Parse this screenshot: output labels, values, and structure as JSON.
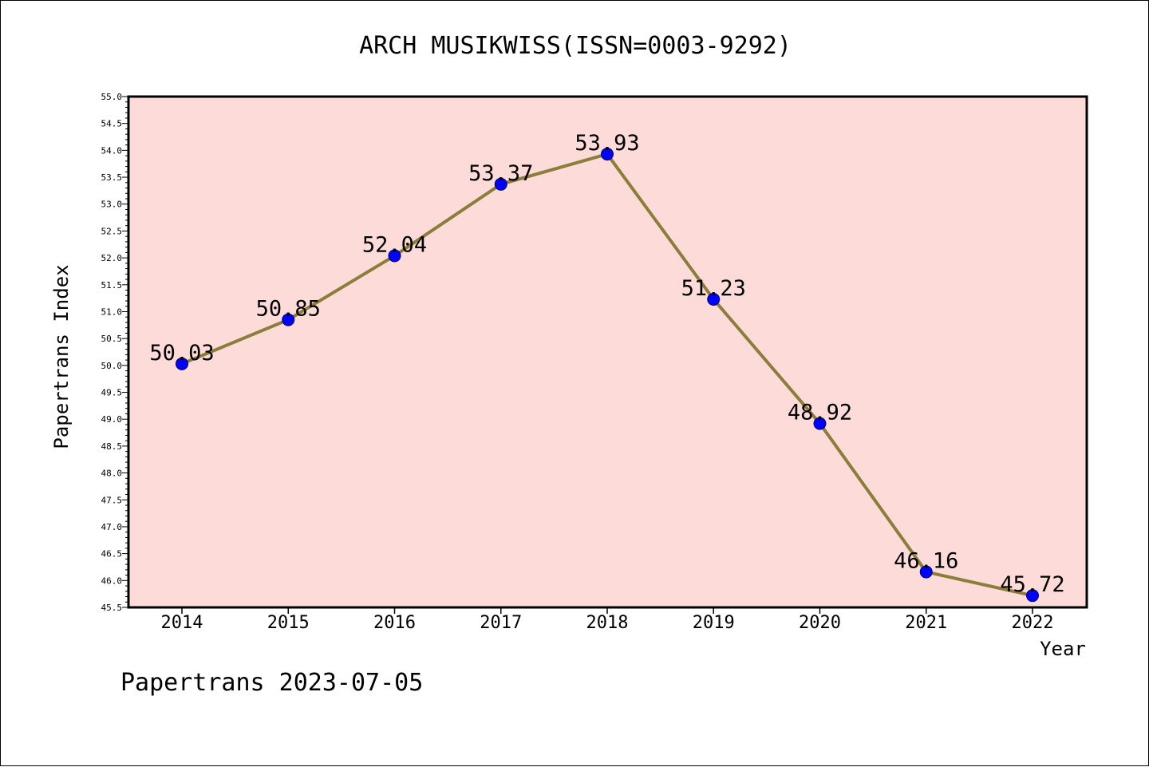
{
  "chart_data": {
    "type": "line",
    "title": "ARCH MUSIKWISS(ISSN=0003-9292)",
    "xlabel": "Year",
    "ylabel": "Papertrans Index",
    "x": [
      "2014",
      "2015",
      "2016",
      "2017",
      "2018",
      "2019",
      "2020",
      "2021",
      "2022"
    ],
    "values": [
      50.03,
      50.85,
      52.04,
      53.37,
      53.93,
      51.23,
      48.92,
      46.16,
      45.72
    ],
    "data_labels": [
      "50.03",
      "50.85",
      "52.04",
      "53.37",
      "53.93",
      "51.23",
      "48.92",
      "46.16",
      "45.72"
    ],
    "ylim": [
      45.5,
      55.0
    ],
    "y_ticks": [
      "45.5",
      "46.0",
      "46.5",
      "47.0",
      "47.5",
      "48.0",
      "48.5",
      "49.0",
      "49.5",
      "50.0",
      "50.5",
      "51.0",
      "51.5",
      "52.0",
      "52.5",
      "53.0",
      "53.5",
      "54.0",
      "54.5",
      "55.0"
    ],
    "grid": false,
    "colors": {
      "plot_background": "#fddbd9",
      "line": "#8b7d3a",
      "marker": "#0000ff"
    }
  },
  "footer": "Papertrans 2023-07-05"
}
